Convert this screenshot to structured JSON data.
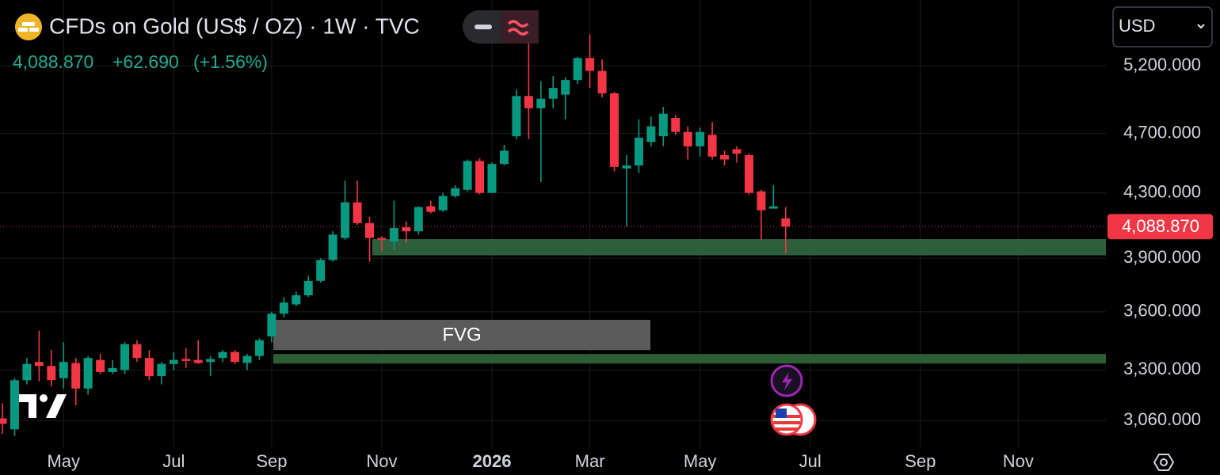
{
  "chart_data": {
    "type": "candlestick",
    "title": "CFDs on Gold (US$ / OZ) · 1W · TVC",
    "last_price": {
      "value": 4088.87,
      "label": "4,088.870"
    },
    "change": "+62.690",
    "change_percent": "(+1.56%)",
    "currency": "USD",
    "up_color": "#089981",
    "down_color": "#f23645",
    "log_scale": true,
    "grid": true,
    "ylim": [
      2940,
      5737
    ],
    "yticks": [
      {
        "value": 3060,
        "label": "3,060.000"
      },
      {
        "value": 3300,
        "label": "3,300.000"
      },
      {
        "value": 3600,
        "label": "3,600.000"
      },
      {
        "value": 3900,
        "label": "3,900.000"
      },
      {
        "value": 4300,
        "label": "4,300.000"
      },
      {
        "value": 4700,
        "label": "4,700.000"
      },
      {
        "value": 5200,
        "label": "5,200.000"
      }
    ],
    "categories": [
      null,
      null,
      null,
      null,
      null,
      "May",
      null,
      null,
      null,
      null,
      null,
      null,
      null,
      null,
      "Jul",
      null,
      null,
      null,
      null,
      null,
      null,
      null,
      "Sep",
      null,
      null,
      null,
      null,
      null,
      null,
      null,
      null,
      "Nov",
      null,
      null,
      null,
      null,
      null,
      null,
      null,
      null,
      "2026",
      null,
      null,
      null,
      null,
      null,
      null,
      null,
      "Mar",
      null,
      null,
      null,
      null,
      null,
      null,
      null,
      null,
      "May",
      null,
      null,
      null,
      null,
      null,
      null,
      null,
      null,
      "Jul",
      null,
      null,
      null,
      null,
      null,
      null,
      null,
      null,
      "Sep",
      null,
      null,
      null,
      null,
      null,
      null,
      null,
      "Nov",
      null,
      null,
      null,
      null,
      null,
      null,
      null
    ],
    "open": [
      3070,
      3020,
      3250,
      3340,
      3320,
      3260,
      3335,
      3210,
      3350,
      3290,
      3300,
      3430,
      3360,
      3270,
      3330,
      3355,
      3350,
      3340,
      3360,
      3390,
      3335,
      3370,
      3470,
      3590,
      3640,
      3690,
      3770,
      3890,
      4020,
      4240,
      4110,
      4020,
      4000,
      4085,
      4060,
      4215,
      4190,
      4280,
      4320,
      4510,
      4300,
      4490,
      4680,
      4970,
      4880,
      4950,
      4980,
      5090,
      5260,
      5160,
      4990,
      4460,
      4480,
      4640,
      4680,
      4810,
      4710,
      4610,
      4690,
      4550,
      4590,
      4550,
      4310,
      4200,
      4140,
      null,
      null,
      null,
      null,
      null,
      null,
      null,
      null,
      null,
      null,
      null,
      null,
      null,
      null,
      null,
      null,
      null,
      null,
      null,
      null,
      null,
      null,
      null,
      null,
      null,
      null
    ],
    "high": [
      3140,
      3260,
      3360,
      3500,
      3400,
      3440,
      3360,
      3370,
      3380,
      3350,
      3440,
      3450,
      3400,
      3340,
      3390,
      3410,
      3450,
      3370,
      3400,
      3400,
      3380,
      3460,
      3600,
      3680,
      3710,
      3800,
      3900,
      4060,
      4380,
      4380,
      4150,
      4030,
      4250,
      4120,
      4215,
      4250,
      4300,
      4350,
      4520,
      4530,
      4500,
      4620,
      5020,
      5380,
      5080,
      5120,
      5110,
      5270,
      5450,
      5250,
      5000,
      4550,
      4800,
      4820,
      4890,
      4830,
      4750,
      4740,
      4780,
      4580,
      4610,
      4560,
      4320,
      4350,
      4210,
      null,
      null,
      null,
      null,
      null,
      null,
      null,
      null,
      null,
      null,
      null,
      null,
      null,
      null,
      null,
      null,
      null,
      null,
      null,
      null,
      null,
      null,
      null,
      null,
      null,
      null
    ],
    "low": [
      3000,
      2990,
      3230,
      3245,
      3220,
      3210,
      3130,
      3180,
      3280,
      3280,
      3280,
      3340,
      3250,
      3230,
      3300,
      3310,
      3330,
      3270,
      3340,
      3330,
      3300,
      3350,
      3440,
      3570,
      3630,
      3680,
      3760,
      3880,
      4010,
      4100,
      3880,
      3940,
      3950,
      3990,
      4040,
      4170,
      4180,
      4270,
      4310,
      4290,
      4300,
      4480,
      4660,
      4660,
      4370,
      4880,
      4800,
      5060,
      5030,
      4960,
      4440,
      4090,
      4430,
      4610,
      4610,
      4690,
      4520,
      4540,
      4520,
      4480,
      4500,
      4290,
      4010,
      4200,
      3930,
      null,
      null,
      null,
      null,
      null,
      null,
      null,
      null,
      null,
      null,
      null,
      null,
      null,
      null,
      null,
      null,
      null,
      null,
      null,
      null,
      null,
      null,
      null,
      null,
      null,
      null
    ],
    "close": [
      3045,
      3250,
      3330,
      3320,
      3250,
      3340,
      3210,
      3360,
      3290,
      3310,
      3430,
      3360,
      3270,
      3330,
      3350,
      3345,
      3335,
      3355,
      3390,
      3340,
      3370,
      3450,
      3590,
      3650,
      3690,
      3770,
      3890,
      4040,
      4240,
      4110,
      4020,
      4010,
      4080,
      4060,
      4210,
      4180,
      4280,
      4330,
      4510,
      4300,
      4490,
      4580,
      4970,
      4880,
      4950,
      5030,
      5090,
      5260,
      5160,
      4990,
      4470,
      4480,
      4670,
      4750,
      4840,
      4710,
      4610,
      4710,
      4540,
      4520,
      4560,
      4300,
      4190,
      4215,
      4088.87,
      null,
      null,
      null,
      null,
      null,
      null,
      null,
      null,
      null,
      null,
      null,
      null,
      null,
      null,
      null,
      null,
      null,
      null,
      null,
      null,
      null,
      null,
      null,
      null,
      null,
      null
    ],
    "zones": [
      {
        "low": 3917,
        "high": 4013,
        "color": "#2e5f3b"
      },
      {
        "label": "FVG",
        "low": 3400,
        "high": 3557,
        "color": "#5a5a5a"
      },
      {
        "low": 3332,
        "high": 3380,
        "color": "#2b5e33"
      }
    ]
  }
}
